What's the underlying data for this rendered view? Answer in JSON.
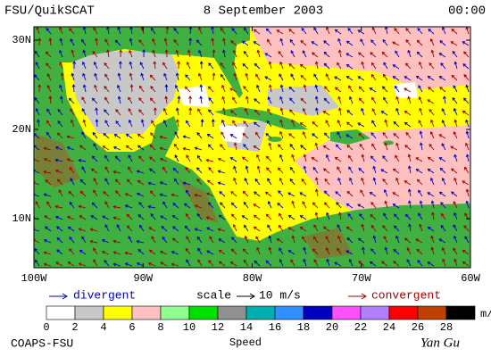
{
  "header": {
    "title": "FSU/QuikSCAT",
    "date": "8 September 2003",
    "time": "00:00"
  },
  "map": {
    "lat_labels": [
      "30N",
      "20N",
      "10N"
    ],
    "lon_labels": [
      "100W",
      "90W",
      "80W",
      "70W",
      "60W"
    ]
  },
  "legend": {
    "divergent": "divergent",
    "scale": "scale",
    "scale_value": "10 m/s",
    "convergent": "convergent"
  },
  "colorbar": {
    "ticks": [
      0,
      2,
      4,
      6,
      8,
      10,
      12,
      14,
      16,
      18,
      20,
      22,
      24,
      26,
      28
    ],
    "colors": [
      "#ffffff",
      "#c8c8c8",
      "#ffff00",
      "#ffc0c0",
      "#90ff90",
      "#00e000",
      "#909090",
      "#00b0b0",
      "#3090ff",
      "#0000c0",
      "#ff50ff",
      "#b080ff",
      "#ff0000",
      "#c04000",
      "#000000"
    ],
    "unit": "m/s",
    "title": "Speed"
  },
  "footer": {
    "left": "COAPS-FSU",
    "right": "Yan Gu"
  }
}
